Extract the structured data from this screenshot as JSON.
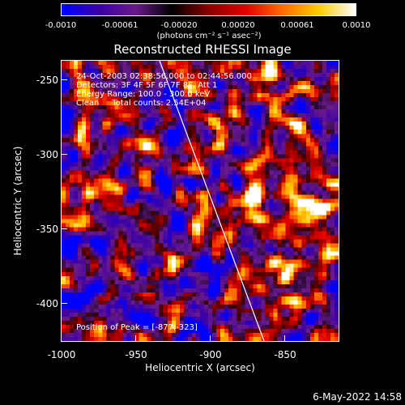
{
  "colorbar": {
    "ticks": [
      "-0.0010",
      "-0.00061",
      "-0.00020",
      "0.00020",
      "0.00061",
      "0.0010"
    ],
    "units_text": "(photons cm⁻² s⁻¹ asec⁻²)",
    "colors": [
      "#0000ff",
      "#3a00a8",
      "#6a1a8a",
      "#000000",
      "#8a0000",
      "#e00000",
      "#ff6a00",
      "#ffcc00",
      "#ffffff"
    ]
  },
  "title": "Reconstructed RHESSI Image",
  "info": {
    "line1": "24-Oct-2003 02:38:56.000 to 02:44:56.000",
    "line2": "Detectors: 3F 4F 5F 6F 7F 8F, Att 1",
    "line3": "Energy Range: 100.0 - 300.0 keV",
    "line4": "Clean     Total counts: 2.54E+04",
    "peak": "Position of Peak = [-877,-323]"
  },
  "axes": {
    "xlabel": "Heliocentric X (arcsec)",
    "ylabel": "Heliocentric Y (arcsec)",
    "xticks": [
      "-1000",
      "-950",
      "-900",
      "-850"
    ],
    "yticks": [
      "-250",
      "-300",
      "-350",
      "-400"
    ],
    "xlim": [
      -1000,
      -912
    ],
    "ylim": [
      -428,
      -240
    ]
  },
  "date_stamp": "6-May-2022 14:58"
}
